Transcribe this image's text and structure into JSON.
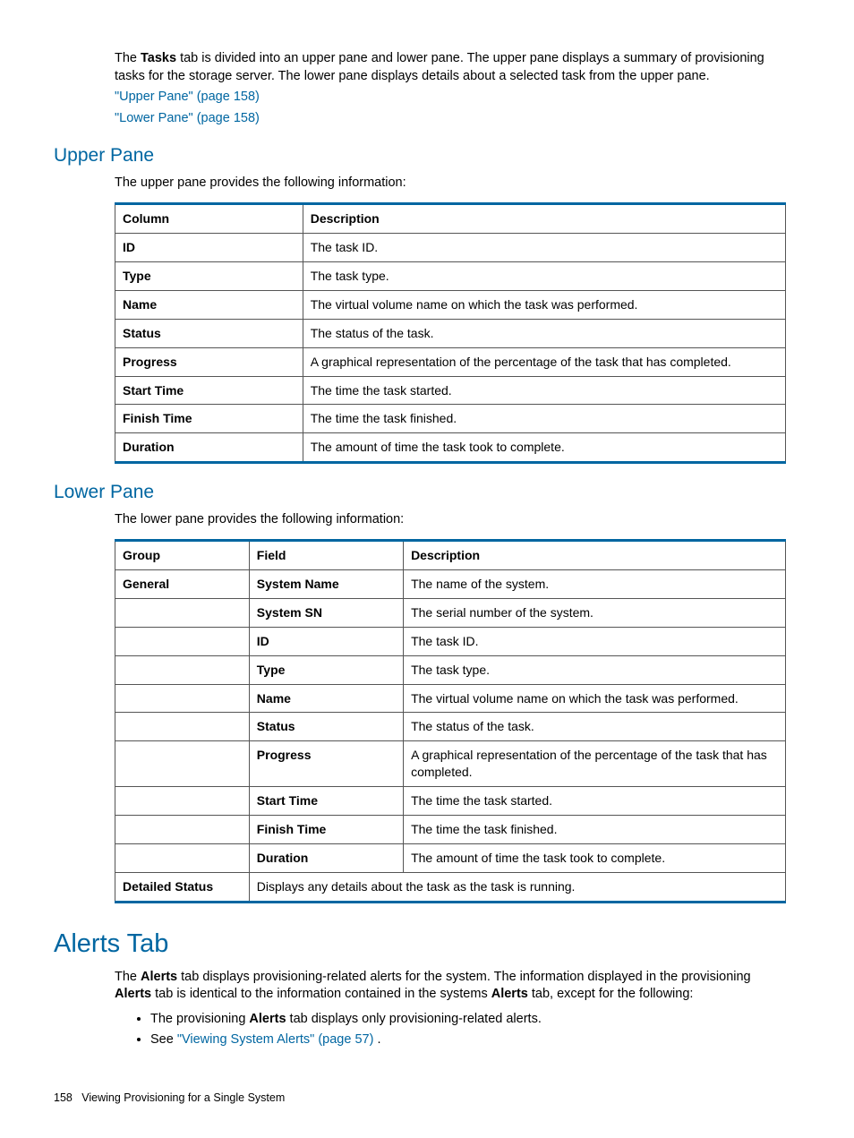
{
  "intro": {
    "text1": "The ",
    "bold1": "Tasks",
    "text2": " tab is divided into an upper pane and lower pane. The upper pane displays a summary of provisioning tasks for the storage server. The lower pane displays details about a selected task from the upper pane.",
    "link1": "\"Upper Pane\" (page 158)",
    "link2": "\"Lower Pane\" (page 158)"
  },
  "upper": {
    "title": "Upper Pane",
    "desc": "The upper pane provides the following information:",
    "columns": [
      "Column",
      "Description"
    ],
    "rows": [
      [
        "ID",
        "The task ID."
      ],
      [
        "Type",
        "The task type."
      ],
      [
        "Name",
        "The virtual volume name on which the task was performed."
      ],
      [
        "Status",
        "The status of the task."
      ],
      [
        "Progress",
        "A graphical representation of the percentage of the task that has completed."
      ],
      [
        "Start Time",
        "The time the task started."
      ],
      [
        "Finish Time",
        "The time the task finished."
      ],
      [
        "Duration",
        "The amount of time the task took to complete."
      ]
    ]
  },
  "lower": {
    "title": "Lower Pane",
    "desc": "The lower pane provides the following information:",
    "columns": [
      "Group",
      "Field",
      "Description"
    ],
    "rows": [
      [
        "General",
        "System Name",
        "The name of the system."
      ],
      [
        "",
        "System SN",
        "The serial number of the system."
      ],
      [
        "",
        "ID",
        "The task ID."
      ],
      [
        "",
        "Type",
        "The task type."
      ],
      [
        "",
        "Name",
        "The virtual volume name on which the task was performed."
      ],
      [
        "",
        "Status",
        "The status of the task."
      ],
      [
        "",
        "Progress",
        "A graphical representation of the percentage of the task that has completed."
      ],
      [
        "",
        "Start Time",
        "The time the task started."
      ],
      [
        "",
        "Finish Time",
        "The time the task finished."
      ],
      [
        "",
        "Duration",
        "The amount of time the task took to complete."
      ]
    ],
    "detailed_status_group": "Detailed Status",
    "detailed_status_desc": "Displays any details about the task as the task is running."
  },
  "alerts": {
    "title": "Alerts Tab",
    "p1a": "The ",
    "p1b": "Alerts",
    "p1c": " tab displays provisioning-related alerts for the system. The information displayed in the provisioning ",
    "p1d": "Alerts",
    "p1e": " tab is identical to the information contained in the systems ",
    "p1f": "Alerts",
    "p1g": " tab, except for the following:",
    "b1a": "The provisioning ",
    "b1b": "Alerts",
    "b1c": " tab displays only provisioning-related alerts.",
    "b2a": "See ",
    "b2b": "\"Viewing System Alerts\" (page 57)",
    "b2c": " ."
  },
  "footer": {
    "page": "158",
    "chapter": "Viewing Provisioning for a Single System"
  }
}
